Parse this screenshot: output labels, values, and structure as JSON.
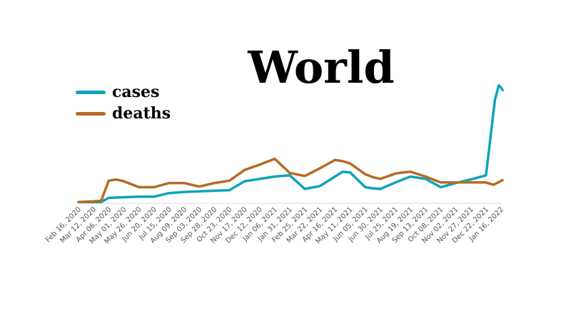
{
  "chart_data": {
    "type": "line",
    "title": "World",
    "xlabel": "",
    "ylabel": "",
    "legend_position": "top-left",
    "grid": false,
    "x_axis_line": true,
    "y_axis_visible": false,
    "categories": [
      "Feb 16, 2020",
      "Mar 12, 2020",
      "Apr 06, 2020",
      "May 01, 2020",
      "May 26, 2020",
      "Jun 20, 2020",
      "Jul 15, 2020",
      "Aug 09, 2020",
      "Sep 03, 2020",
      "Sep 28, 2020",
      "Oct 23, 2020",
      "Nov 17, 2020",
      "Dec 12, 2020",
      "Jan 06, 2021",
      "Jan 31, 2021",
      "Feb 25, 2021",
      "Mar 22, 2021",
      "Apr 16, 2021",
      "May 11, 2021",
      "Jun 05, 2021",
      "Jun 30, 2021",
      "Jul 25, 2021",
      "Aug 19, 2021",
      "Sep 13, 2021",
      "Oct 08, 2021",
      "Nov 02, 2021",
      "Nov 27, 2021",
      "Dec 22, 2021",
      "Jan 16, 2022"
    ],
    "ylim": [
      0,
      100
    ],
    "series": [
      {
        "name": "cases",
        "color": "#0fa3b9",
        "x": [
          0,
          1,
          1.5,
          2,
          3,
          4,
          5,
          6,
          7,
          8,
          9,
          10,
          11,
          12,
          13,
          14,
          15,
          16,
          17,
          17.5,
          18,
          19,
          19.5,
          20,
          21,
          22,
          23,
          24,
          25,
          26,
          27,
          27.6,
          27.85,
          28,
          28.1
        ],
        "y": [
          0.5,
          0.5,
          0.5,
          4,
          4.5,
          5,
          5,
          8,
          9,
          9.5,
          10,
          10.5,
          18,
          20,
          22,
          23,
          11.5,
          14,
          22,
          26,
          25.5,
          13,
          12,
          11.5,
          17,
          22,
          20,
          13,
          16.5,
          19.5,
          23,
          87,
          99,
          97,
          95
        ]
      },
      {
        "name": "deaths",
        "color": "#b56b24",
        "x": [
          0,
          1,
          1.5,
          2,
          2.5,
          3,
          4,
          5,
          6,
          7,
          8,
          9,
          10,
          11,
          12,
          13,
          14,
          15,
          16,
          17,
          17.5,
          18,
          19,
          19.5,
          20,
          21,
          21.5,
          22,
          23,
          24,
          25,
          26,
          27,
          27.5,
          28.1
        ],
        "y": [
          0.5,
          1,
          1.5,
          18.5,
          19.5,
          18,
          13,
          13,
          16.5,
          16.5,
          13.5,
          16.5,
          18.5,
          27.5,
          32,
          37,
          25,
          22.5,
          29,
          36,
          35,
          33,
          24,
          21.5,
          20,
          24.5,
          25.5,
          26,
          22,
          17,
          17,
          17,
          17,
          15,
          19
        ]
      }
    ]
  }
}
